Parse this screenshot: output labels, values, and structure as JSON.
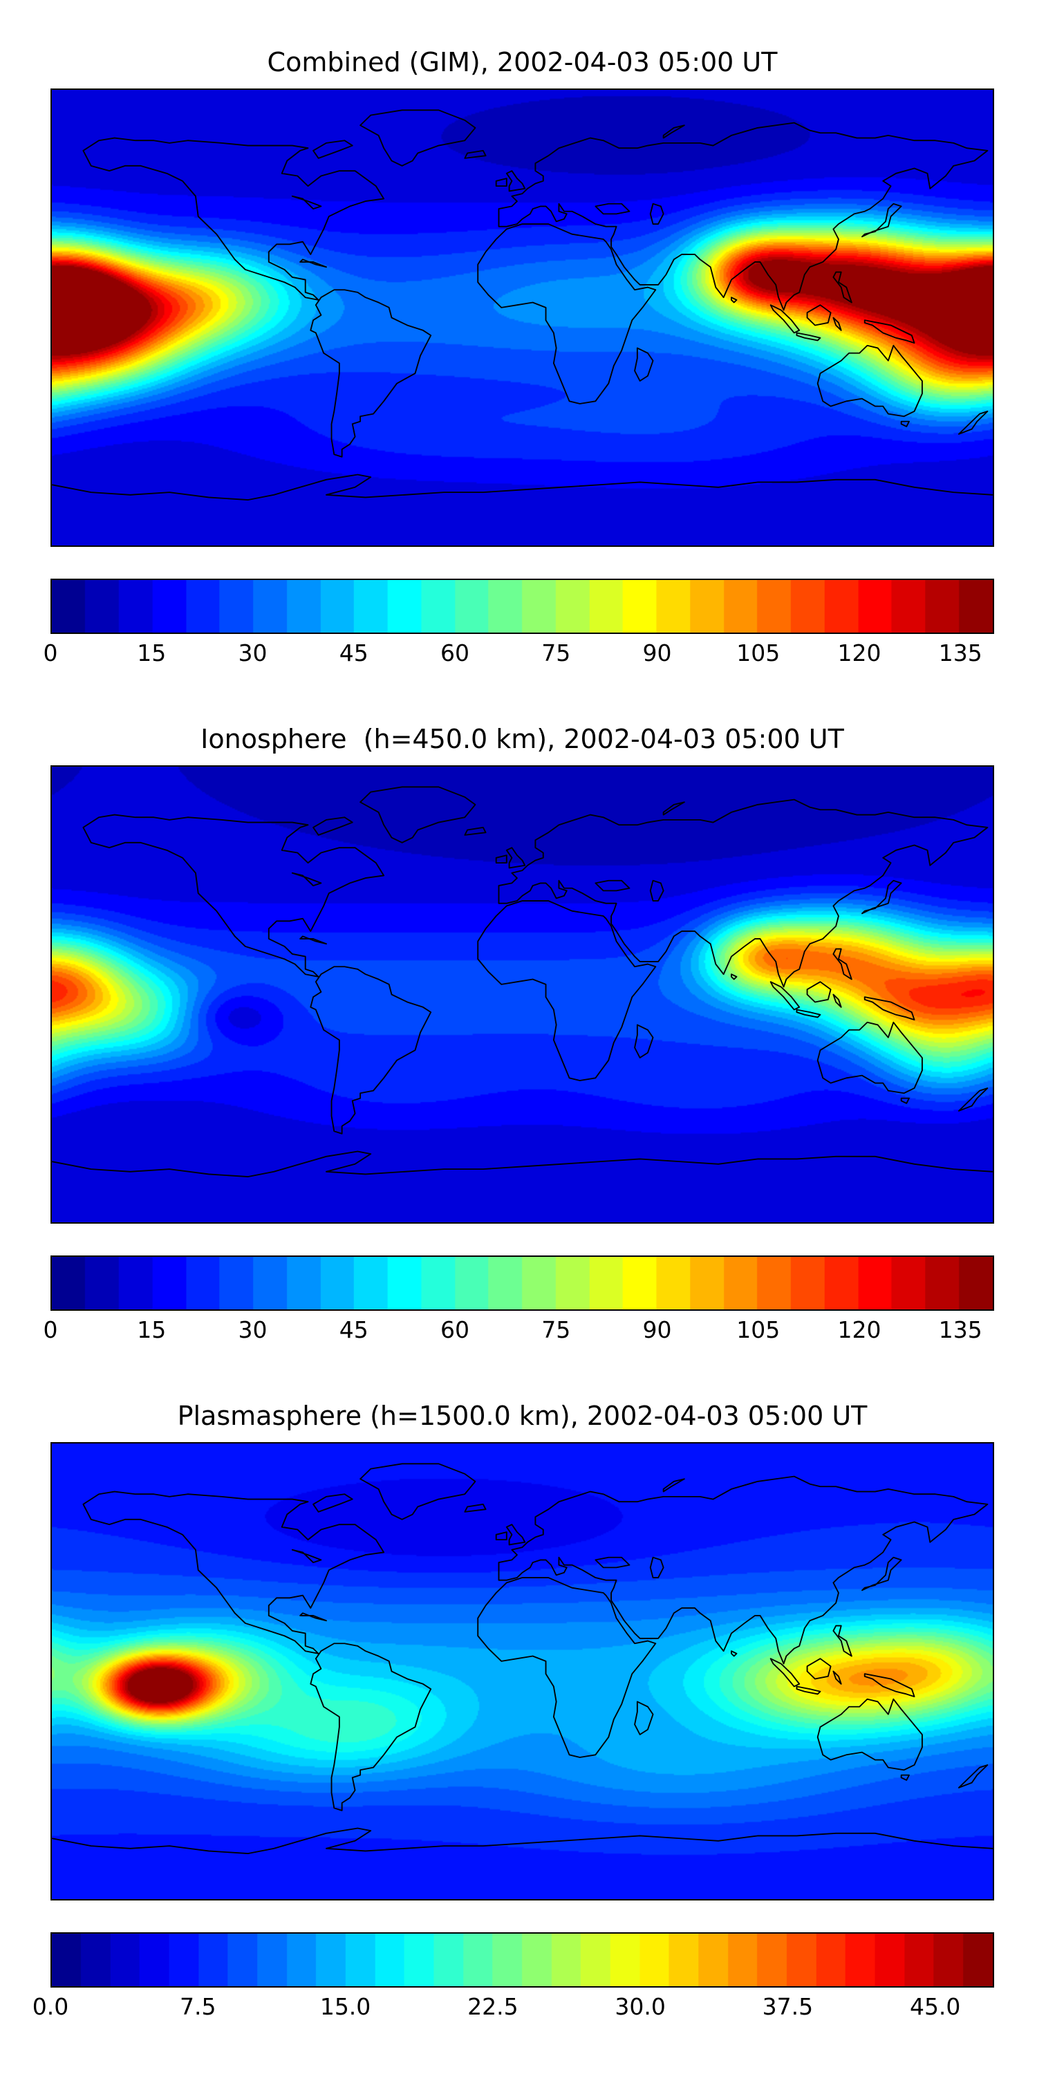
{
  "figure": {
    "background": "#ffffff",
    "timestamp": "2002-04-03 05:00 UT",
    "colormap_name": "jet",
    "colormap_ends": {
      "low": "#000080",
      "high": "#800000"
    }
  },
  "chart_data": [
    {
      "type": "heatmap",
      "subtype": "filled-contour-world-map",
      "title": "Combined (GIM), 2002-04-03 05:00 UT",
      "projection": "equirectangular",
      "lon_range": [
        -180,
        180
      ],
      "lat_range": [
        -90,
        90
      ],
      "colormap": "jet",
      "grid": false,
      "colorbar": {
        "orientation": "horizontal",
        "tick_labels": [
          "0",
          "15",
          "30",
          "45",
          "60",
          "75",
          "90",
          "105",
          "120",
          "135"
        ],
        "tick_values": [
          0,
          15,
          30,
          45,
          60,
          75,
          90,
          105,
          120,
          135
        ],
        "scale_max": 140,
        "band_step": 5
      },
      "approx_max_value": 135,
      "field_model": {
        "base": {
          "level": 12,
          "equator_amp": 20,
          "equator_lat": 2,
          "equator_width": 32
        },
        "gaussian_components": [
          {
            "lon": 118,
            "lat": 18,
            "amp": 85,
            "sx": 30,
            "sy": 14
          },
          {
            "lon": 150,
            "lat": 3,
            "amp": 70,
            "sx": 28,
            "sy": 16
          },
          {
            "lon": 88,
            "lat": 18,
            "amp": 55,
            "sx": 15,
            "sy": 11
          },
          {
            "lon": -174,
            "lat": 10,
            "amp": 100,
            "sx": 18,
            "sy": 13
          },
          {
            "lon": -148,
            "lat": 2,
            "amp": 55,
            "sx": 22,
            "sy": 14
          },
          {
            "lon": -118,
            "lat": 8,
            "amp": 40,
            "sx": 22,
            "sy": 13
          },
          {
            "lon": -165,
            "lat": -15,
            "amp": 45,
            "sx": 22,
            "sy": 12
          },
          {
            "lon": 163,
            "lat": -22,
            "amp": 45,
            "sx": 20,
            "sy": 13
          },
          {
            "lon": 40,
            "lat": 70,
            "amp": -6,
            "sx": 50,
            "sy": 12
          },
          {
            "lon": -40,
            "lat": -45,
            "amp": 8,
            "sx": 45,
            "sy": 12
          },
          {
            "lon": 60,
            "lat": -45,
            "amp": 10,
            "sx": 50,
            "sy": 14
          },
          {
            "lon": 20,
            "lat": 12,
            "amp": 6,
            "sx": 30,
            "sy": 15
          }
        ]
      }
    },
    {
      "type": "heatmap",
      "subtype": "filled-contour-world-map",
      "title": "Ionosphere  (h=450.0 km), 2002-04-03 05:00 UT",
      "projection": "equirectangular",
      "lon_range": [
        -180,
        180
      ],
      "lat_range": [
        -90,
        90
      ],
      "colormap": "jet",
      "grid": false,
      "colorbar": {
        "orientation": "horizontal",
        "tick_labels": [
          "0",
          "15",
          "30",
          "45",
          "60",
          "75",
          "90",
          "105",
          "120",
          "135"
        ],
        "tick_values": [
          0,
          15,
          30,
          45,
          60,
          75,
          90,
          105,
          120,
          135
        ],
        "scale_max": 140,
        "band_step": 5
      },
      "approx_max_value": 105,
      "field_model": {
        "base": {
          "level": 10,
          "equator_amp": 18,
          "equator_lat": 0,
          "equator_width": 32
        },
        "gaussian_components": [
          {
            "lon": 120,
            "lat": 15,
            "amp": 72,
            "sx": 26,
            "sy": 13
          },
          {
            "lon": 150,
            "lat": -4,
            "amp": 58,
            "sx": 20,
            "sy": 12
          },
          {
            "lon": 90,
            "lat": 15,
            "amp": 40,
            "sx": 14,
            "sy": 10
          },
          {
            "lon": -177,
            "lat": 5,
            "amp": 62,
            "sx": 18,
            "sy": 13
          },
          {
            "lon": -150,
            "lat": -8,
            "amp": 35,
            "sx": 22,
            "sy": 13
          },
          {
            "lon": -112,
            "lat": -8,
            "amp": -20,
            "sx": 15,
            "sy": 8
          },
          {
            "lon": 163,
            "lat": -25,
            "amp": 30,
            "sx": 18,
            "sy": 12
          },
          {
            "lon": 30,
            "lat": 70,
            "amp": -5,
            "sx": 50,
            "sy": 12
          },
          {
            "lon": -50,
            "lat": -40,
            "amp": 7,
            "sx": 40,
            "sy": 12
          },
          {
            "lon": 70,
            "lat": -40,
            "amp": 8,
            "sx": 45,
            "sy": 13
          }
        ]
      }
    },
    {
      "type": "heatmap",
      "subtype": "filled-contour-world-map",
      "title": "Plasmasphere (h=1500.0 km), 2002-04-03 05:00 UT",
      "projection": "equirectangular",
      "lon_range": [
        -180,
        180
      ],
      "lat_range": [
        -90,
        90
      ],
      "colormap": "jet",
      "grid": false,
      "colorbar": {
        "orientation": "horizontal",
        "tick_labels": [
          "0.0",
          "7.5",
          "15.0",
          "22.5",
          "30.0",
          "37.5",
          "45.0"
        ],
        "tick_values": [
          0,
          7.5,
          15,
          22.5,
          30,
          37.5,
          45
        ],
        "scale_max": 48,
        "band_step": 1.5
      },
      "approx_max_value": 46,
      "field_model": {
        "base": {
          "level": 7,
          "equator_amp": 7,
          "equator_lat": -2,
          "equator_width": 38
        },
        "gaussian_components": [
          {
            "lon": -141,
            "lat": -6,
            "amp": 36,
            "sx": 15,
            "sy": 9
          },
          {
            "lon": -118,
            "lat": -2,
            "amp": 12,
            "sx": 20,
            "sy": 12
          },
          {
            "lon": 122,
            "lat": -4,
            "amp": 18,
            "sx": 30,
            "sy": 13
          },
          {
            "lon": 160,
            "lat": 2,
            "amp": 10,
            "sx": 22,
            "sy": 12
          },
          {
            "lon": -60,
            "lat": -18,
            "amp": 5,
            "sx": 25,
            "sy": 12
          },
          {
            "lon": -30,
            "lat": 55,
            "amp": -3,
            "sx": 60,
            "sy": 15
          },
          {
            "lon": 60,
            "lat": -40,
            "amp": 4,
            "sx": 50,
            "sy": 14
          },
          {
            "lon": -80,
            "lat": -30,
            "amp": 5,
            "sx": 35,
            "sy": 12
          }
        ]
      }
    }
  ]
}
